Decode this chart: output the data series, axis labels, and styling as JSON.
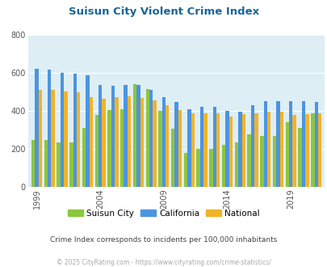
{
  "title": "Suisun City Violent Crime Index",
  "years": [
    1999,
    2000,
    2001,
    2002,
    2003,
    2004,
    2005,
    2006,
    2007,
    2008,
    2009,
    2010,
    2011,
    2012,
    2013,
    2014,
    2015,
    2016,
    2017,
    2018,
    2019,
    2020,
    2021
  ],
  "suisun_city": [
    245,
    245,
    232,
    232,
    310,
    378,
    405,
    408,
    540,
    515,
    400,
    305,
    178,
    200,
    200,
    222,
    235,
    275,
    268,
    268,
    340,
    310,
    385
  ],
  "california": [
    620,
    615,
    600,
    595,
    585,
    535,
    530,
    535,
    535,
    510,
    470,
    445,
    410,
    420,
    420,
    398,
    395,
    428,
    450,
    450,
    450,
    450,
    445
  ],
  "national": [
    510,
    510,
    500,
    498,
    470,
    465,
    470,
    478,
    468,
    455,
    430,
    405,
    387,
    388,
    388,
    372,
    383,
    388,
    396,
    396,
    380,
    382,
    385
  ],
  "colors": {
    "suisun_city": "#8dc63f",
    "california": "#4d94e0",
    "national": "#f0b429"
  },
  "ylim": [
    0,
    800
  ],
  "yticks": [
    0,
    200,
    400,
    600,
    800
  ],
  "xtick_labels": [
    "1999",
    "2004",
    "2009",
    "2014",
    "2019"
  ],
  "xtick_positions": [
    1999,
    2004,
    2009,
    2014,
    2019
  ],
  "plot_bg": "#ddeef5",
  "legend_labels": [
    "Suisun City",
    "California",
    "National"
  ],
  "subtitle": "Crime Index corresponds to incidents per 100,000 inhabitants",
  "footer": "© 2025 CityRating.com - https://www.cityrating.com/crime-statistics/",
  "title_color": "#1a6696",
  "subtitle_color": "#444444",
  "footer_color": "#aaaaaa",
  "bar_width": 0.28
}
